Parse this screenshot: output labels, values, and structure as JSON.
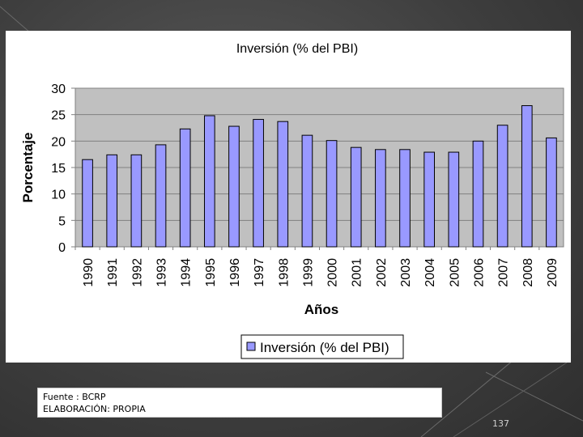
{
  "chart_data": {
    "type": "bar",
    "title": "Inversión (% del PBI)",
    "xlabel": "Años",
    "ylabel": "Porcentaje",
    "categories": [
      "1990",
      "1991",
      "1992",
      "1993",
      "1994",
      "1995",
      "1996",
      "1997",
      "1998",
      "1999",
      "2000",
      "2001",
      "2002",
      "2003",
      "2004",
      "2005",
      "2006",
      "2007",
      "2008",
      "2009"
    ],
    "series": [
      {
        "name": "Inversión (% del PBI)",
        "values": [
          16.5,
          17.4,
          17.4,
          19.3,
          22.3,
          24.8,
          22.8,
          24.1,
          23.7,
          21.1,
          20.1,
          18.8,
          18.4,
          18.4,
          17.9,
          17.9,
          20.0,
          23.0,
          26.7,
          20.6
        ]
      }
    ],
    "yticks": [
      "0",
      "5",
      "10",
      "15",
      "20",
      "25",
      "30"
    ],
    "ylim": [
      0,
      30
    ],
    "grid": true,
    "legend_position": "bottom",
    "plot_background": "#c0c0c0",
    "bar_color": "#9999ff"
  },
  "footer": {
    "source_line": "Fuente : BCRP",
    "credit_line": "ELABORACIÓN: PROPIA"
  },
  "page_number": "137"
}
